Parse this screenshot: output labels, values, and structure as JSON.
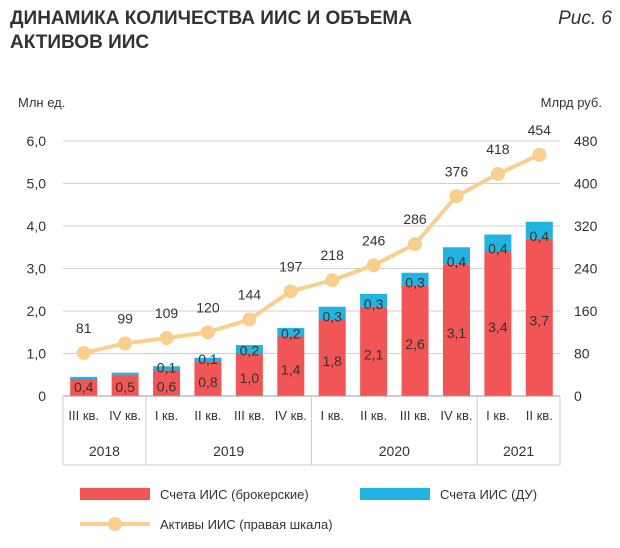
{
  "title_lines": [
    "ДИНАМИКА КОЛИЧЕСТВА ИИС И ОБЪЕМА",
    "АКТИВОВ ИИС"
  ],
  "figure_label": "Рис. 6",
  "colors": {
    "broker": "#f25555",
    "du": "#22b4e0",
    "assets": "#f8cf8c",
    "grid": "#d0d0d0",
    "text": "#333333"
  },
  "chart_data": {
    "type": "bar",
    "stacked": true,
    "title": "ДИНАМИКА КОЛИЧЕСТВА ИИС И ОБЪЕМА АКТИВОВ ИИС",
    "ylabel": "Млн ед.",
    "y2label": "Млрд руб.",
    "ylim": [
      0,
      6
    ],
    "y2lim": [
      0,
      480
    ],
    "yticks": [
      "0",
      "1,0",
      "2,0",
      "3,0",
      "4,0",
      "5,0",
      "6,0"
    ],
    "y2ticks": [
      "0",
      "80",
      "160",
      "240",
      "320",
      "400",
      "480"
    ],
    "grid": true,
    "categories": [
      "III кв.",
      "IV кв.",
      "I кв.",
      "II кв.",
      "III кв.",
      "IV кв.",
      "I кв.",
      "II кв.",
      "III кв.",
      "IV кв.",
      "I кв.",
      "II кв."
    ],
    "years": [
      {
        "label": "2018",
        "count": 2
      },
      {
        "label": "2019",
        "count": 4
      },
      {
        "label": "2020",
        "count": 4
      },
      {
        "label": "2021",
        "count": 2
      }
    ],
    "series": [
      {
        "name": "Счета ИИС (брокерские)",
        "type": "bar",
        "values": [
          0.4,
          0.5,
          0.6,
          0.8,
          1.0,
          1.4,
          1.8,
          2.1,
          2.6,
          3.1,
          3.4,
          3.7
        ],
        "labels": [
          "0,4",
          "0,5",
          "0,6",
          "0,8",
          "1,0",
          "1,4",
          "1,8",
          "2,1",
          "2,6",
          "3,1",
          "3,4",
          "3,7"
        ]
      },
      {
        "name": "Счета ИИС (ДУ)",
        "type": "bar",
        "values": [
          0.05,
          0.05,
          0.1,
          0.1,
          0.2,
          0.2,
          0.3,
          0.3,
          0.3,
          0.4,
          0.4,
          0.4
        ],
        "labels": [
          "",
          "",
          "0,1",
          "0,1",
          "0,2",
          "0,2",
          "0,3",
          "0,3",
          "0,3",
          "0,4",
          "0,4",
          "0,4"
        ]
      },
      {
        "name": "Активы ИИС (правая шкала)",
        "type": "line",
        "axis": "right",
        "values": [
          81,
          99,
          109,
          120,
          144,
          197,
          218,
          246,
          286,
          376,
          418,
          454
        ],
        "labels": [
          "81",
          "99",
          "109",
          "120",
          "144",
          "197",
          "218",
          "246",
          "286",
          "376",
          "418",
          "454"
        ]
      }
    ],
    "legend": "bottom"
  }
}
